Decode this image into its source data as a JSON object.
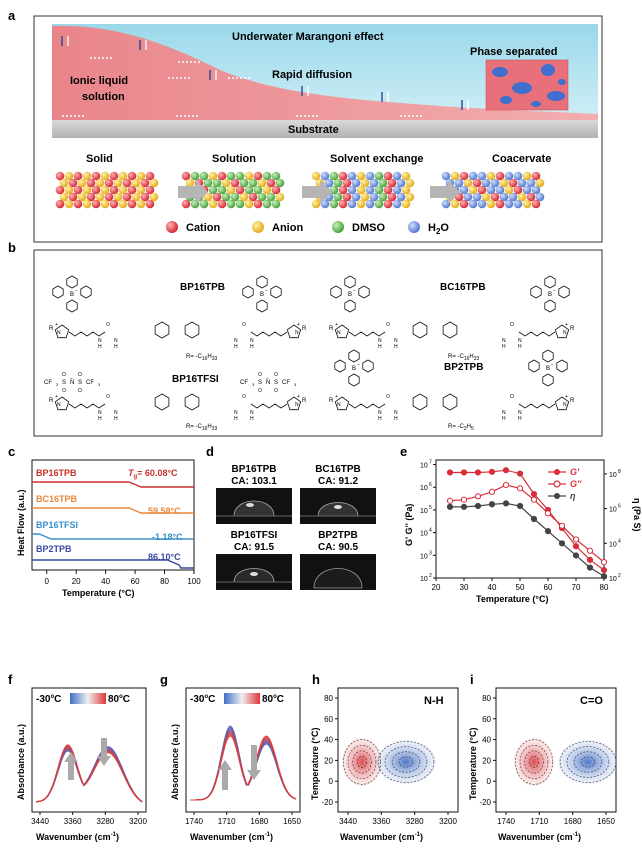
{
  "panel_a": {
    "label": "a",
    "title": "Underwater Marangoni  effect",
    "left_label_1": "Ionic liquid",
    "left_label_2": "solution",
    "center_label": "Rapid diffusion",
    "right_label": "Phase separated",
    "substrate": "Substrate",
    "stages": [
      "Solid",
      "Solution",
      "Solvent exchange",
      "Coacervate"
    ],
    "legend": [
      {
        "name": "Cation",
        "color": "#e8343f"
      },
      {
        "name": "Anion",
        "color": "#f2c12e"
      },
      {
        "name": "DMSO",
        "color": "#69c15a"
      },
      {
        "name": "H",
        "sub": "2",
        "tail": "O",
        "color": "#6f95d8"
      }
    ]
  },
  "panel_b": {
    "label": "b",
    "molecules": [
      {
        "name": "BP16TPB",
        "r": "R= -C",
        "r_sub": "16",
        "r_h": "H",
        "r_sub2": "33"
      },
      {
        "name": "BC16TPB",
        "r": "R= -C",
        "r_sub": "16",
        "r_h": "H",
        "r_sub2": "33"
      },
      {
        "name": "BP16TFSI",
        "r": "R= -C",
        "r_sub": "16",
        "r_h": "H",
        "r_sub2": "33"
      },
      {
        "name": "BP2TPB",
        "r": "R= -C",
        "r_sub": "2",
        "r_h": "H",
        "r_sub2": "5"
      }
    ],
    "atoms": {
      "n": "N",
      "h": "H",
      "o": "O",
      "b": "B",
      "s": "S",
      "cf3": "CF",
      "three": "3",
      "r": "R",
      "plus": "+",
      "minus": "−"
    }
  },
  "panel_c": {
    "label": "c",
    "ylabel": "Heat Flow (a.u.)",
    "xlabel": "Temperature (°C)",
    "x_ticks": [
      "0",
      "20",
      "40",
      "60",
      "80",
      "100"
    ],
    "curves": [
      {
        "name": "BP16TPB",
        "tg_prefix": "T",
        "tg_sub": "g",
        "tg_value": "= 60.08°C",
        "color": "#c9302c"
      },
      {
        "name": "BC16TPB",
        "tg_value": "59.58°C",
        "color": "#e8873a"
      },
      {
        "name": "BP16TFSI",
        "tg_value": "-1.18°C",
        "color": "#3a8fc9"
      },
      {
        "name": "BP2TPB",
        "tg_value": "86.10°C",
        "color": "#3b4aa0"
      }
    ]
  },
  "panel_d": {
    "label": "d",
    "drops": [
      {
        "name": "BP16TPB",
        "ca": "CA: 103.1"
      },
      {
        "name": "BC16TPB",
        "ca": "CA: 91.2"
      },
      {
        "name": "BP16TFSI",
        "ca": "CA: 91.5"
      },
      {
        "name": "BP2TPB",
        "ca": "CA: 90.5"
      }
    ]
  },
  "panel_e": {
    "label": "e",
    "ylabel_left": "G' G'' (Pa)",
    "ylabel_right": "η (Pa S)",
    "xlabel": "Temperature (°C)",
    "x_ticks": [
      "20",
      "30",
      "40",
      "50",
      "60",
      "70",
      "80"
    ],
    "y_left_ticks": [
      "10",
      "10",
      "10",
      "10",
      "10",
      "10"
    ],
    "y_left_exp": [
      "2",
      "3",
      "4",
      "5",
      "6",
      "7"
    ],
    "y_right_ticks": [
      "10",
      "10",
      "10",
      "10"
    ],
    "y_right_exp": [
      "2",
      "4",
      "6",
      "8"
    ],
    "legend": [
      "G'",
      "G''",
      "η"
    ],
    "colors": {
      "g1": "#d62f3a",
      "g2": "#d62f3a",
      "eta": "#444444"
    }
  },
  "chart_data": [
    {
      "type": "line",
      "xlabel": "Temperature (°C)",
      "ylabel": "G' G'' (Pa)",
      "xlim": [
        20,
        80
      ],
      "ylim_log10": [
        2,
        7.2
      ],
      "series": [
        {
          "name": "G'",
          "x": [
            25,
            30,
            35,
            40,
            45,
            50,
            55,
            60,
            65,
            70,
            75,
            80
          ],
          "y_log10": [
            6.65,
            6.65,
            6.65,
            6.68,
            6.75,
            6.6,
            5.7,
            5.0,
            4.2,
            3.4,
            2.8,
            2.35
          ]
        },
        {
          "name": "G''",
          "x": [
            25,
            30,
            35,
            40,
            45,
            50,
            55,
            60,
            65,
            70,
            75,
            80
          ],
          "y_log10": [
            5.4,
            5.45,
            5.6,
            5.8,
            6.1,
            5.95,
            5.45,
            4.85,
            4.3,
            3.7,
            3.2,
            2.7
          ]
        }
      ]
    },
    {
      "type": "line",
      "xlabel": "Temperature (°C)",
      "ylabel": "η (Pa S)",
      "xlim": [
        20,
        80
      ],
      "ylim_log10": [
        2,
        8.8
      ],
      "series": [
        {
          "name": "η",
          "x": [
            25,
            30,
            35,
            40,
            45,
            50,
            55,
            60,
            65,
            70,
            75,
            80
          ],
          "y_log10": [
            6.1,
            6.1,
            6.15,
            6.25,
            6.3,
            6.15,
            5.4,
            4.7,
            4.0,
            3.3,
            2.6,
            2.1
          ]
        }
      ]
    }
  ],
  "panel_f": {
    "label": "f",
    "ylabel": "Absorbance (a.u.)",
    "xlabel": "Wavenumber (cm",
    "xlabel_sup": "-1",
    "xlabel_tail": ")",
    "x_ticks": [
      "3440",
      "3360",
      "3280",
      "3200"
    ],
    "temp_low": "-30",
    "temp_high": "80",
    "deg": "o",
    "unit": "C"
  },
  "panel_g": {
    "label": "g",
    "ylabel": "Absorbance (a.u.)",
    "xlabel": "Wavenumber (cm",
    "xlabel_sup": "-1",
    "xlabel_tail": ")",
    "x_ticks": [
      "1740",
      "1710",
      "1680",
      "1650"
    ],
    "temp_low": "-30",
    "temp_high": "80",
    "deg": "o",
    "unit": "C"
  },
  "panel_h": {
    "label": "h",
    "title": "N-H",
    "ylabel": "Temperature (°C)",
    "xlabel": "Wavenumber (cm",
    "xlabel_sup": "-1",
    "xlabel_tail": ")",
    "x_ticks": [
      "3440",
      "3360",
      "3280",
      "3200"
    ],
    "y_ticks": [
      "80",
      "60",
      "40",
      "20",
      "0",
      "-20"
    ]
  },
  "panel_i": {
    "label": "i",
    "title": "C=O",
    "ylabel": "Temperature (°C)",
    "xlabel": "Wavenumber (cm",
    "xlabel_sup": "-1",
    "xlabel_tail": ")",
    "x_ticks": [
      "1740",
      "1710",
      "1680",
      "1650"
    ],
    "y_ticks": [
      "80",
      "60",
      "40",
      "20",
      "0",
      "-20"
    ]
  }
}
